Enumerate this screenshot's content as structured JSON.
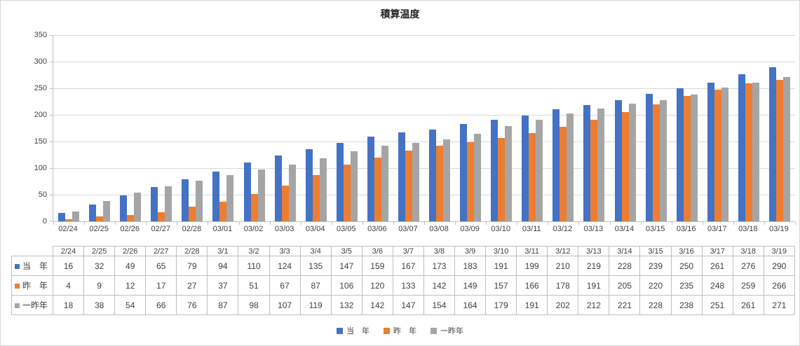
{
  "title": "積算温度",
  "chart_data": {
    "type": "bar",
    "title": "積算温度",
    "categories": [
      "02/24",
      "02/25",
      "02/26",
      "02/27",
      "02/28",
      "03/01",
      "03/02",
      "03/03",
      "03/04",
      "03/05",
      "03/06",
      "03/07",
      "03/08",
      "03/09",
      "03/10",
      "03/11",
      "03/12",
      "03/13",
      "03/14",
      "03/15",
      "03/16",
      "03/17",
      "03/18",
      "03/19"
    ],
    "series": [
      {
        "name": "当　年",
        "color": "#4472C4",
        "values": [
          16,
          32,
          49,
          65,
          79,
          94,
          110,
          124,
          135,
          147,
          159,
          167,
          173,
          183,
          191,
          199,
          210,
          219,
          228,
          239,
          250,
          261,
          276,
          290
        ]
      },
      {
        "name": "昨　年",
        "color": "#ED7D31",
        "values": [
          4,
          9,
          12,
          17,
          27,
          37,
          51,
          67,
          87,
          106,
          120,
          133,
          142,
          149,
          157,
          166,
          178,
          191,
          205,
          220,
          235,
          248,
          259,
          266
        ]
      },
      {
        "name": "一昨年",
        "color": "#A5A5A5",
        "values": [
          18,
          38,
          54,
          66,
          76,
          87,
          98,
          107,
          119,
          132,
          142,
          147,
          154,
          164,
          179,
          191,
          202,
          212,
          221,
          228,
          238,
          251,
          261,
          271
        ]
      }
    ],
    "xlabel": "",
    "ylabel": "",
    "ylim": [
      0,
      350
    ],
    "yticks": [
      0,
      50,
      100,
      150,
      200,
      250,
      300,
      350
    ],
    "grid": true,
    "legend_position": "bottom",
    "data_table": {
      "headers": [
        "2/24",
        "2/25",
        "2/26",
        "2/27",
        "2/28",
        "3/1",
        "3/2",
        "3/3",
        "3/4",
        "3/5",
        "3/6",
        "3/7",
        "3/8",
        "3/9",
        "3/10",
        "3/11",
        "3/12",
        "3/13",
        "3/14",
        "3/15",
        "3/16",
        "3/17",
        "3/18",
        "3/19"
      ],
      "show_legend_keys": true
    }
  },
  "colors": {
    "series_blue": "#4472C4",
    "series_orange": "#ED7D31",
    "series_gray": "#A5A5A5",
    "gridline": "#D9D9D9",
    "axis_line": "#BFBFBF",
    "table_border": "#BFBFBF",
    "text": "#404040"
  }
}
